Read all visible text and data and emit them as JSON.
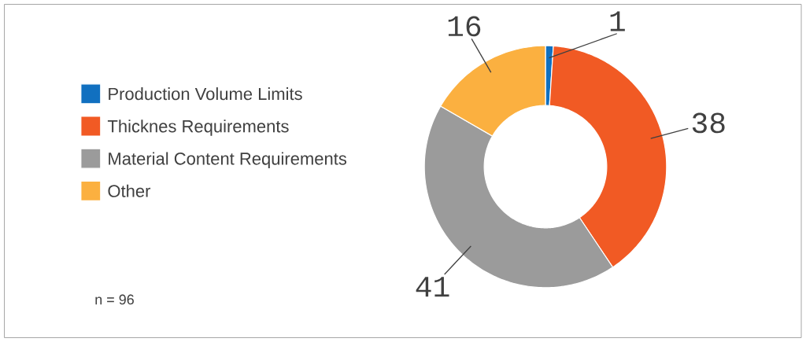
{
  "chart_data": {
    "type": "donut",
    "categories": [
      "Production Volume Limits",
      "Thicknes Requirements",
      "Material Content Requirements",
      "Other"
    ],
    "values": [
      1,
      38,
      41,
      16
    ],
    "colors": [
      "#1170c0",
      "#f15a24",
      "#9b9b9b",
      "#fbb040"
    ],
    "data_labels": true,
    "legend": "left",
    "annotations": [
      "n = 96"
    ]
  }
}
